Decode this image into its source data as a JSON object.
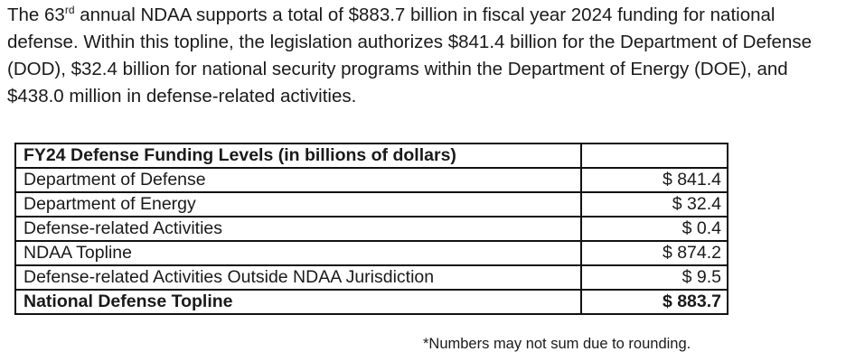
{
  "intro": {
    "part1": "The 63",
    "ordinal_suffix": "rd",
    "part2": " annual NDAA supports a total of $883.7 billion in fiscal year 2024 funding for national defense. Within this topline, the legislation authorizes $841.4 billion for the Department of Defense (DOD), $32.4 billion for national security programs within the Department of Energy (DOE), and $438.0 million in defense-related activities."
  },
  "table": {
    "header": {
      "label": "FY24 Defense Funding Levels (in billions of dollars)",
      "value": ""
    },
    "rows": [
      {
        "label": "Department of Defense",
        "value": "$ 841.4"
      },
      {
        "label": "Department of Energy",
        "value": "$ 32.4"
      },
      {
        "label": "Defense-related Activities",
        "value": "$ 0.4"
      },
      {
        "label": "NDAA Topline",
        "value": "$ 874.2"
      },
      {
        "label": "Defense-related Activities Outside NDAA Jurisdiction",
        "value": "$ 9.5"
      }
    ],
    "total": {
      "label": "National Defense Topline",
      "value": "$ 883.7"
    }
  },
  "footnote": "*Numbers may not sum due to rounding."
}
